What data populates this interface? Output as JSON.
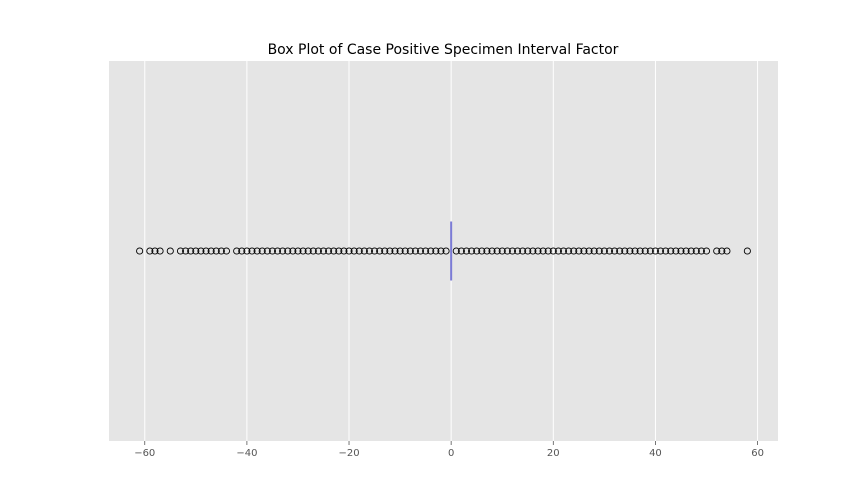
{
  "chart_data": {
    "type": "box",
    "orientation": "horizontal",
    "title": "Box Plot of Case Positive Specimen Interval Factor",
    "xlabel": "",
    "ylabel": "",
    "xlim": [
      -67,
      64
    ],
    "x_ticks": [
      -60,
      -40,
      -20,
      0,
      20,
      40,
      60
    ],
    "x_tick_labels": [
      "−60",
      "−40",
      "−20",
      "0",
      "20",
      "40",
      "60"
    ],
    "grid": true,
    "background": "#e5e5e5",
    "box": {
      "q1": 0,
      "median": 0,
      "q3": 0,
      "whisker_low": 0,
      "whisker_high": 0,
      "color": "#7b7bd6"
    },
    "outliers": [
      -61,
      -59,
      -58,
      -57,
      -55,
      -53,
      -52,
      -51,
      -50,
      -49,
      -48,
      -47,
      -46,
      -45,
      -44,
      -42,
      -41,
      -40,
      -39,
      -38,
      -37,
      -36,
      -35,
      -34,
      -33,
      -32,
      -31,
      -30,
      -29,
      -28,
      -27,
      -26,
      -25,
      -24,
      -23,
      -22,
      -21,
      -20,
      -19,
      -18,
      -17,
      -16,
      -15,
      -14,
      -13,
      -12,
      -11,
      -10,
      -9,
      -8,
      -7,
      -6,
      -5,
      -4,
      -3,
      -2,
      -1,
      1,
      2,
      3,
      4,
      5,
      6,
      7,
      8,
      9,
      10,
      11,
      12,
      13,
      14,
      15,
      16,
      17,
      18,
      19,
      20,
      21,
      22,
      23,
      24,
      25,
      26,
      27,
      28,
      29,
      30,
      31,
      32,
      33,
      34,
      35,
      36,
      37,
      38,
      39,
      40,
      41,
      42,
      43,
      44,
      45,
      46,
      47,
      48,
      49,
      50,
      52,
      53,
      54,
      58
    ]
  }
}
